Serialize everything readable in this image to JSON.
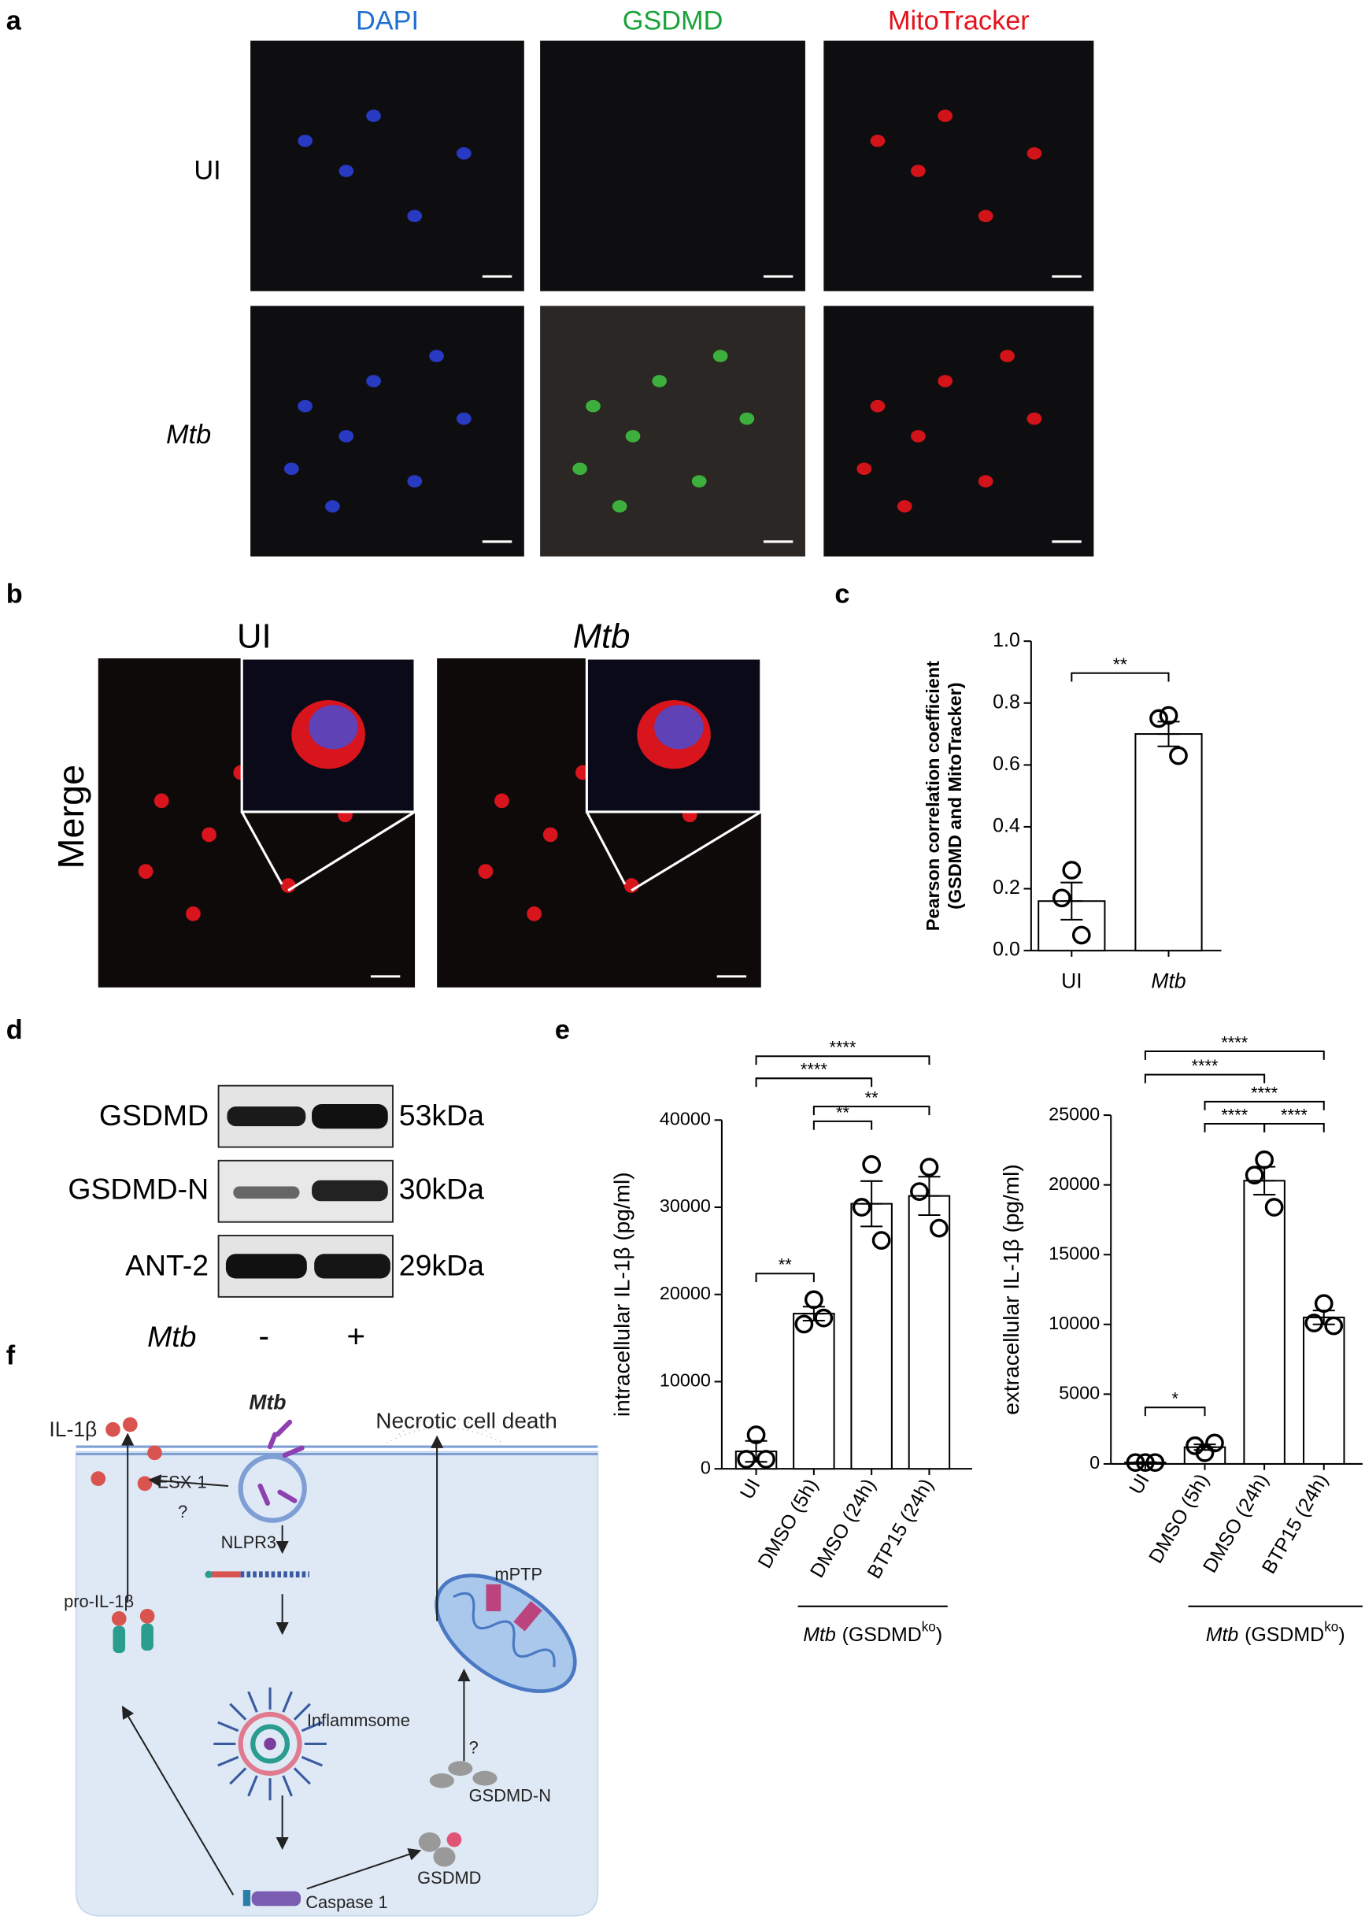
{
  "panel_labels": [
    "a",
    "b",
    "c",
    "d",
    "e",
    "f"
  ],
  "panel_a": {
    "columns": [
      "DAPI",
      "GSDMD",
      "MitoTracker"
    ],
    "rows": [
      "UI",
      "Mtb"
    ]
  },
  "panel_b": {
    "columns": [
      "UI",
      "Mtb"
    ],
    "row": "Merge"
  },
  "panel_d": {
    "bands": [
      {
        "name": "GSDMD",
        "size": "53kDa"
      },
      {
        "name": "GSDMD-N",
        "size": "30kDa"
      },
      {
        "name": "ANT-2",
        "size": "29kDa"
      }
    ],
    "condition": "Mtb",
    "lanes": [
      "-",
      "+"
    ]
  },
  "panel_f": {
    "mtb": "Mtb",
    "il1b": "IL-1β",
    "necrotic": "Necrotic cell death",
    "esx1": "ESX-1",
    "q1": "?",
    "nlpr3": "NLPR3",
    "pro_il1b": "pro-IL-1β",
    "inflammasome": "Inflammsome",
    "mptp": "mPTP",
    "q2": "?",
    "gsdmd_n": "GSDMD-N",
    "gsdmd": "GSDMD",
    "caspase1": "Caspase 1"
  },
  "chart_data": [
    {
      "type": "bar",
      "y_label": [
        "Pearson correlation coefficient",
        "(GSDMD and MitoTracker)"
      ],
      "categories": [
        "UI",
        "Mtb"
      ],
      "values": [
        0.16,
        0.7
      ],
      "errors": [
        0.06,
        0.04
      ],
      "points": [
        [
          0.26,
          0.17,
          0.05
        ],
        [
          0.76,
          0.75,
          0.63
        ]
      ],
      "ylim": [
        0,
        1.0
      ],
      "yticks": [
        {
          "value": 0,
          "label": "0.0"
        },
        0.2,
        0.4,
        0.6,
        0.8,
        {
          "value": 1.0,
          "label": "1.0"
        }
      ],
      "significance": [
        {
          "from": "UI",
          "to": "Mtb",
          "label": "**"
        }
      ]
    },
    {
      "type": "bar",
      "y_label": [
        "intracellular IL-1β (pg/ml)"
      ],
      "categories": [
        "UI",
        "DMSO (5h)",
        "DMSO (24h)",
        "BTP15 (24h)"
      ],
      "values": [
        2000,
        17800,
        30400,
        31300
      ],
      "errors": [
        1200,
        800,
        2600,
        2200
      ],
      "points": [
        [
          3900,
          1100,
          1100
        ],
        [
          19400,
          16600,
          17300
        ],
        [
          34900,
          30000,
          26200
        ],
        [
          34600,
          31800,
          27600
        ]
      ],
      "ylim": [
        0,
        40000
      ],
      "yticks": [
        0,
        10000,
        20000,
        30000,
        40000
      ],
      "significance": [
        {
          "from": "UI",
          "to": "DMSO (5h)",
          "label": "**"
        },
        {
          "from": "DMSO (5h)",
          "to": "DMSO (24h)",
          "label": "**"
        },
        {
          "from": "DMSO (5h)",
          "to": "BTP15 (24h)",
          "label": "**"
        },
        {
          "from": "UI",
          "to": "DMSO (24h)",
          "label": "****"
        },
        {
          "from": "UI",
          "to": "BTP15 (24h)",
          "label": "****"
        }
      ],
      "group": {
        "from": "DMSO (5h)",
        "to": "BTP15 (24h)",
        "label": [
          "Mtb",
          "(GSDMD",
          "ko",
          ")"
        ]
      }
    },
    {
      "type": "bar",
      "y_label": [
        "extracellular IL-1β (pg/ml)"
      ],
      "categories": [
        "UI",
        "DMSO (5h)",
        "DMSO (24h)",
        "BTP15 (24h)"
      ],
      "values": [
        100,
        1200,
        20300,
        10500
      ],
      "errors": [
        30,
        200,
        1000,
        500
      ],
      "points": [
        [
          100,
          100,
          100
        ],
        [
          800,
          1300,
          1500
        ],
        [
          21800,
          20700,
          18400
        ],
        [
          11500,
          10100,
          9900
        ]
      ],
      "ylim": [
        0,
        25000
      ],
      "yticks": [
        0,
        5000,
        10000,
        15000,
        20000,
        25000
      ],
      "significance": [
        {
          "from": "UI",
          "to": "DMSO (5h)",
          "label": "*"
        },
        {
          "from": "DMSO (5h)",
          "to": "DMSO (24h)",
          "label": "****"
        },
        {
          "from": "DMSO (24h)",
          "to": "BTP15 (24h)",
          "label": "****"
        },
        {
          "from": "DMSO (5h)",
          "to": "BTP15 (24h)",
          "label": "****"
        },
        {
          "from": "UI",
          "to": "DMSO (24h)",
          "label": "****"
        },
        {
          "from": "UI",
          "to": "BTP15 (24h)",
          "label": "****"
        }
      ],
      "group": {
        "from": "DMSO (5h)",
        "to": "BTP15 (24h)",
        "label": [
          "Mtb",
          "(GSDMD",
          "ko",
          ")"
        ]
      }
    }
  ]
}
